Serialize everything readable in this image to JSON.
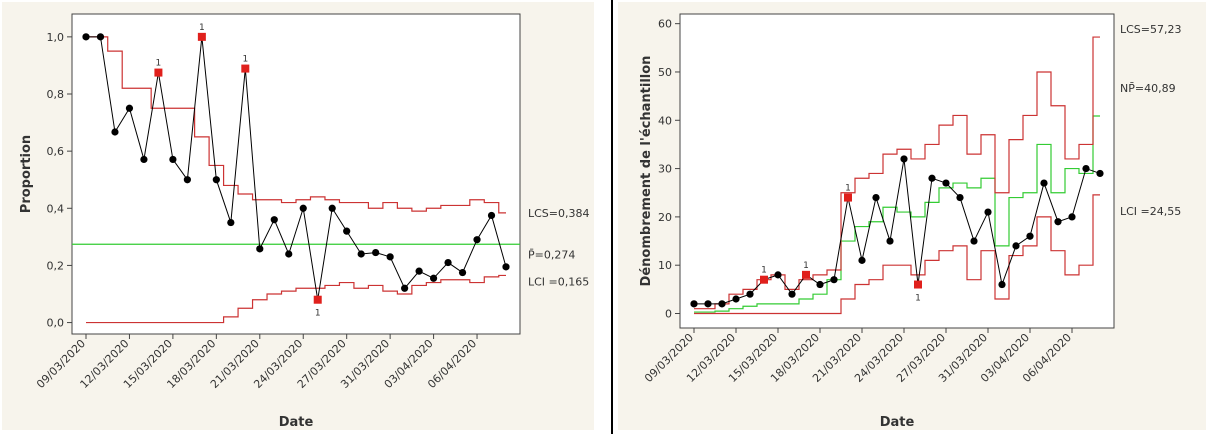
{
  "chart_data": [
    {
      "type": "line",
      "chart": "p-control-chart",
      "xlabel": "Date",
      "ylabel": "Proportion",
      "ylim": [
        -0.04,
        1.08
      ],
      "yticks": [
        "0,0",
        "0,2",
        "0,4",
        "0,6",
        "0,8",
        "1,0"
      ],
      "ytick_values": [
        0,
        0.2,
        0.4,
        0.6,
        0.8,
        1.0
      ],
      "xticks": [
        "09/03/2020",
        "12/03/2020",
        "15/03/2020",
        "18/03/2020",
        "21/03/2020",
        "24/03/2020",
        "27/03/2020",
        "31/03/2020",
        "03/04/2020",
        "06/04/2020"
      ],
      "xtick_index": [
        0,
        3,
        6,
        9,
        12,
        15,
        18,
        21,
        24,
        27
      ],
      "series": [
        {
          "values": [
            1.0,
            1.0,
            0.667,
            0.75,
            0.571,
            0.875,
            0.571,
            0.5,
            1.0,
            0.5,
            0.35,
            0.889,
            0.258,
            0.36,
            0.24,
            0.4,
            0.08,
            0.4,
            0.32,
            0.24,
            0.245,
            0.23,
            0.12,
            0.18,
            0.155,
            0.21,
            0.175,
            0.29,
            0.375,
            0.195
          ],
          "color": "#000000"
        }
      ],
      "center_line": {
        "value": 0.274,
        "label": "P̄=0,274",
        "color": "#33cc33"
      },
      "ucl": {
        "label": "LCS=0,384",
        "color": "#cc3333",
        "values": [
          1.0,
          1.0,
          0.95,
          0.82,
          0.82,
          0.75,
          0.75,
          0.75,
          0.65,
          0.55,
          0.48,
          0.45,
          0.43,
          0.43,
          0.42,
          0.43,
          0.44,
          0.43,
          0.42,
          0.42,
          0.4,
          0.42,
          0.4,
          0.39,
          0.4,
          0.41,
          0.41,
          0.43,
          0.42,
          0.384
        ]
      },
      "lcl": {
        "label": "LCI =0,165",
        "color": "#cc3333",
        "values": [
          0,
          0,
          0,
          0,
          0,
          0,
          0,
          0,
          0,
          0,
          0.02,
          0.05,
          0.08,
          0.1,
          0.11,
          0.12,
          0.12,
          0.13,
          0.14,
          0.12,
          0.13,
          0.11,
          0.1,
          0.13,
          0.14,
          0.15,
          0.15,
          0.14,
          0.16,
          0.165
        ]
      },
      "out_of_control": [
        {
          "index": 5,
          "label": "1"
        },
        {
          "index": 8,
          "label": "1"
        },
        {
          "index": 11,
          "label": "1"
        },
        {
          "index": 16,
          "label": "1"
        }
      ]
    },
    {
      "type": "line",
      "chart": "np-control-chart",
      "xlabel": "Date",
      "ylabel": "Dénombrement de l'échantillon",
      "ylim": [
        -3,
        62
      ],
      "yticks": [
        "0",
        "10",
        "20",
        "30",
        "40",
        "50",
        "60"
      ],
      "ytick_values": [
        0,
        10,
        20,
        30,
        40,
        50,
        60
      ],
      "xticks": [
        "09/03/2020",
        "12/03/2020",
        "15/03/2020",
        "18/03/2020",
        "21/03/2020",
        "24/03/2020",
        "27/03/2020",
        "31/03/2020",
        "03/04/2020",
        "06/04/2020"
      ],
      "xtick_index": [
        0,
        3,
        6,
        9,
        12,
        15,
        18,
        21,
        24,
        27
      ],
      "series": [
        {
          "values": [
            2,
            2,
            2,
            3,
            4,
            7,
            8,
            4,
            8,
            6,
            7,
            24,
            11,
            24,
            15,
            32,
            6,
            28,
            27,
            24,
            15,
            21,
            6,
            14,
            16,
            27,
            19,
            20,
            30,
            29
          ],
          "color": "#000000"
        }
      ],
      "center_line": {
        "label": "NP̄=40,89",
        "color": "#33cc33",
        "values": [
          0.3,
          0.3,
          0.5,
          1,
          1.5,
          2,
          2,
          2,
          3,
          4,
          7,
          15,
          18,
          19,
          22,
          21,
          20,
          23,
          26,
          27,
          26,
          28,
          14,
          24,
          25,
          35,
          25,
          30,
          29,
          40.89
        ]
      },
      "ucl": {
        "label": "LCS=57,23",
        "color": "#cc3333",
        "values": [
          1,
          1,
          2,
          4,
          5,
          7,
          8,
          5,
          7,
          8,
          9,
          25,
          28,
          29,
          33,
          34,
          32,
          35,
          39,
          41,
          33,
          37,
          25,
          36,
          41,
          50,
          43,
          32,
          35,
          57.23
        ]
      },
      "lcl": {
        "label": "LCI =24,55",
        "color": "#cc3333",
        "values": [
          0,
          0,
          0,
          0,
          0,
          0,
          0,
          0,
          0,
          0,
          0,
          3,
          6,
          7,
          10,
          10,
          8,
          11,
          13,
          14,
          7,
          13,
          3,
          12,
          14,
          20,
          13,
          8,
          10,
          24.55
        ]
      },
      "out_of_control": [
        {
          "index": 5,
          "label": "1"
        },
        {
          "index": 8,
          "label": "1"
        },
        {
          "index": 11,
          "label": "1"
        },
        {
          "index": 16,
          "label": "1"
        }
      ]
    }
  ]
}
